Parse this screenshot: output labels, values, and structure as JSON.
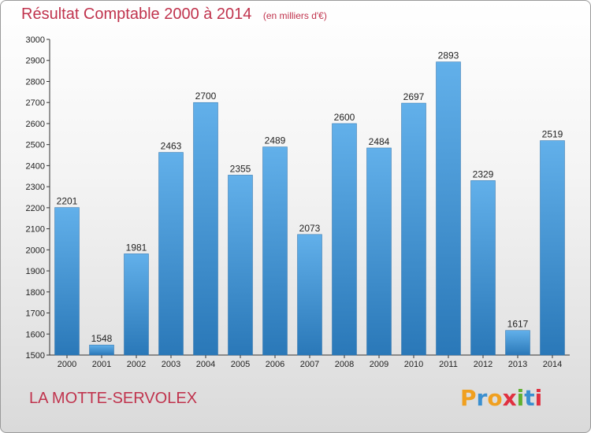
{
  "chart_data": {
    "type": "bar",
    "title": "Résultat Comptable 2000 à 2014",
    "subtitle": "(en milliers d'€)",
    "xlabel": "",
    "ylabel": "",
    "categories": [
      "2000",
      "2001",
      "2002",
      "2003",
      "2004",
      "2005",
      "2006",
      "2007",
      "2008",
      "2009",
      "2010",
      "2011",
      "2012",
      "2013",
      "2014"
    ],
    "values": [
      2201,
      1548,
      1981,
      2463,
      2700,
      2355,
      2489,
      2073,
      2600,
      2484,
      2697,
      2893,
      2329,
      1617,
      2519
    ],
    "ylim": [
      1500,
      3000
    ],
    "yticks": [
      1500,
      1600,
      1700,
      1800,
      1900,
      2000,
      2100,
      2200,
      2300,
      2400,
      2500,
      2600,
      2700,
      2800,
      2900,
      3000
    ],
    "grid": false,
    "legend": "none"
  },
  "footer": {
    "commune": "LA MOTTE-SERVOLEX",
    "logo_letters": [
      "P",
      "r",
      "o",
      "x",
      "i",
      "t",
      "i"
    ],
    "logo_colors": [
      "#f0a020",
      "#3a8fd0",
      "#f0a020",
      "#e03040",
      "#60b030",
      "#3a8fd0",
      "#e03040"
    ]
  },
  "colors": {
    "bar_top": "#62b0ea",
    "bar_bottom": "#2a78b8",
    "title": "#c0334d"
  }
}
